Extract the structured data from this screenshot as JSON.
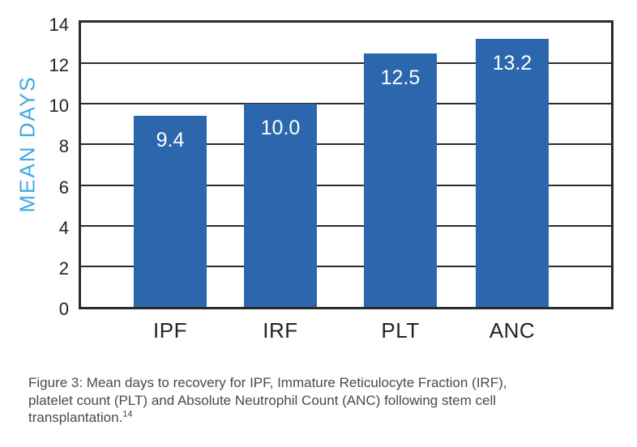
{
  "figure": {
    "caption_lines": [
      "Figure 3:  Mean days to recovery for IPF, Immature Reticulocyte Fraction (IRF),",
      "platelet count (PLT) and Absolute Neutrophil Count (ANC) following stem cell",
      "transplantation."
    ],
    "caption_reference": "14"
  },
  "chart_data": {
    "type": "bar",
    "categories": [
      "IPF",
      "IRF",
      "PLT",
      "ANC"
    ],
    "values": [
      9.4,
      10.0,
      12.5,
      13.2
    ],
    "bar_labels": [
      "9.4",
      "10.0",
      "12.5",
      "13.2"
    ],
    "title": "",
    "xlabel": "",
    "ylabel": "MEAN DAYS",
    "ylim": [
      0,
      14
    ],
    "yticks": [
      0,
      2,
      4,
      6,
      8,
      10,
      12,
      14
    ],
    "grid": "horizontal-behind-bars",
    "legend": "none",
    "colors": {
      "bar": "#2c66ad",
      "value_label": "#ffffff",
      "ylabel": "#41a9e1",
      "axis_and_grid": "#2b2a2c",
      "tick_label": "#232226",
      "caption": "#4a4a4a"
    }
  }
}
